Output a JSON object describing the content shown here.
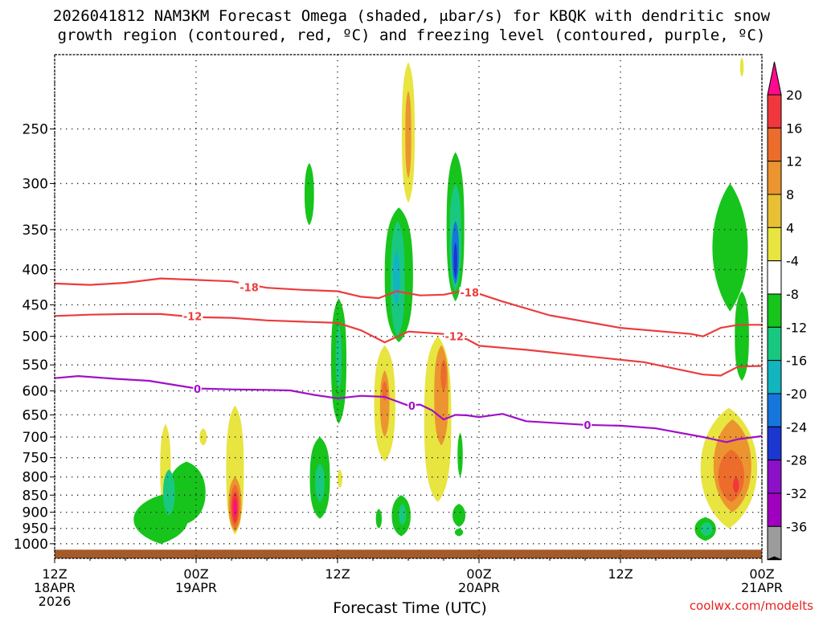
{
  "chart_data": {
    "type": "contour",
    "title_line1": "2026041812 NAM3KM Forecast Omega (shaded, μbar/s) for KBQK with dendritic snow",
    "title_line2": "growth region (contoured, red, ºC) and freezing level (contoured, purple, ºC)",
    "xlabel": "Forecast Time (UTC)",
    "ylabel": "",
    "credit": "coolwx.com/modelts",
    "x_range_hours": [
      0,
      60
    ],
    "y_axis": {
      "scale": "log",
      "range_hpa": [
        1050,
        195
      ],
      "reversed": true
    },
    "y_ticks": [
      250,
      300,
      350,
      400,
      450,
      500,
      550,
      600,
      650,
      700,
      750,
      800,
      850,
      900,
      950,
      1000
    ],
    "x_ticks": [
      {
        "hour": 0,
        "lines": [
          "12Z",
          "18APR",
          "2026"
        ]
      },
      {
        "hour": 12,
        "lines": [
          "00Z",
          "19APR"
        ]
      },
      {
        "hour": 24,
        "lines": [
          "12Z"
        ]
      },
      {
        "hour": 36,
        "lines": [
          "00Z",
          "20APR"
        ]
      },
      {
        "hour": 48,
        "lines": [
          "12Z"
        ]
      },
      {
        "hour": 60,
        "lines": [
          "00Z",
          "21APR"
        ]
      }
    ],
    "colorbar": {
      "labels": [
        "20",
        "16",
        "12",
        "8",
        "4",
        "-4",
        "-8",
        "-12",
        "-16",
        "-20",
        "-24",
        "-28",
        "-32",
        "-36"
      ],
      "colors": [
        "#ff0a8c",
        "#f0383c",
        "#ec6c2c",
        "#eb9430",
        "#e8c034",
        "#e8e440",
        "#ffffff",
        "#17c41c",
        "#19c880",
        "#12b4c0",
        "#1676dc",
        "#1c36d0",
        "#8c10c8",
        "#a000c0",
        "#9c9c9c",
        "#000000"
      ]
    },
    "contours": [
      {
        "name": "-18",
        "color": "#ec3c3c",
        "points": [
          [
            0,
            419
          ],
          [
            3,
            421
          ],
          [
            6,
            418
          ],
          [
            9,
            412
          ],
          [
            12,
            414
          ],
          [
            15,
            416
          ],
          [
            18,
            425
          ],
          [
            21,
            428
          ],
          [
            24,
            430
          ],
          [
            26,
            438
          ],
          [
            27.5,
            440
          ],
          [
            29,
            430
          ],
          [
            31,
            436
          ],
          [
            33,
            435
          ],
          [
            35,
            428
          ],
          [
            38,
            445
          ],
          [
            42,
            466
          ],
          [
            48,
            486
          ],
          [
            54,
            496
          ],
          [
            55,
            500
          ],
          [
            56.5,
            486
          ],
          [
            58,
            481
          ],
          [
            60,
            481
          ]
        ]
      },
      {
        "name": "-12",
        "color": "#ec3c3c",
        "points": [
          [
            0,
            467
          ],
          [
            3,
            465
          ],
          [
            6,
            464
          ],
          [
            9,
            464
          ],
          [
            12,
            469
          ],
          [
            15,
            470
          ],
          [
            18,
            474
          ],
          [
            21,
            476
          ],
          [
            24,
            478
          ],
          [
            26,
            490
          ],
          [
            28,
            510
          ],
          [
            30,
            492
          ],
          [
            33,
            496
          ],
          [
            35,
            505
          ],
          [
            36,
            516
          ],
          [
            40,
            523
          ],
          [
            45,
            534
          ],
          [
            50,
            545
          ],
          [
            55,
            568
          ],
          [
            56.5,
            570
          ],
          [
            58,
            553
          ],
          [
            60,
            552
          ]
        ]
      },
      {
        "name": "0",
        "color": "#a010c8",
        "points": [
          [
            0,
            575
          ],
          [
            2,
            571
          ],
          [
            5,
            576
          ],
          [
            8,
            580
          ],
          [
            12,
            595
          ],
          [
            15,
            597
          ],
          [
            18,
            598
          ],
          [
            20,
            599
          ],
          [
            22,
            608
          ],
          [
            24,
            615
          ],
          [
            26,
            610
          ],
          [
            28,
            612
          ],
          [
            30,
            630
          ],
          [
            31,
            628
          ],
          [
            32,
            640
          ],
          [
            33,
            660
          ],
          [
            34,
            650
          ],
          [
            35,
            651
          ],
          [
            36,
            655
          ],
          [
            38,
            648
          ],
          [
            40,
            664
          ],
          [
            45,
            672
          ],
          [
            48,
            674
          ],
          [
            51,
            680
          ],
          [
            55,
            700
          ],
          [
            57,
            712
          ],
          [
            58,
            705
          ],
          [
            60,
            698
          ]
        ]
      }
    ],
    "contour_labels": [
      {
        "text": "-18",
        "hour": 16.5,
        "hpa": 424,
        "color": "#ec3c3c"
      },
      {
        "text": "-18",
        "hour": 35.2,
        "hpa": 432,
        "color": "#ec3c3c"
      },
      {
        "text": "-12",
        "hour": 11.7,
        "hpa": 467,
        "color": "#ec3c3c"
      },
      {
        "text": "-12",
        "hour": 33.9,
        "hpa": 500,
        "color": "#ec3c3c"
      },
      {
        "text": "0",
        "hour": 12.1,
        "hpa": 596,
        "color": "#a010c8"
      },
      {
        "text": "0",
        "hour": 30.3,
        "hpa": 630,
        "color": "#a010c8"
      },
      {
        "text": "0",
        "hour": 45.2,
        "hpa": 672,
        "color": "#a010c8"
      }
    ],
    "shaded_regions": [
      {
        "value": 4,
        "color": "#e8e440",
        "hour": 30.0,
        "hpa_top": 200,
        "hpa_bottom": 320,
        "hw": 0.55,
        "pinch": 0.18
      },
      {
        "value": 8,
        "color": "#eb9430",
        "hour": 30.0,
        "hpa_top": 220,
        "hpa_bottom": 295,
        "hw": 0.25,
        "pinch": 0.15
      },
      {
        "value": -4,
        "color": "#17c41c",
        "hour": 21.6,
        "hpa_top": 280,
        "hpa_bottom": 345,
        "hw": 0.4,
        "pinch": 0.3
      },
      {
        "value": -4,
        "color": "#17c41c",
        "hour": 29.2,
        "hpa_top": 325,
        "hpa_bottom": 510,
        "hw": 1.2,
        "pinch": 0.2
      },
      {
        "value": -8,
        "color": "#19c880",
        "hour": 29.1,
        "hpa_top": 340,
        "hpa_bottom": 500,
        "hw": 0.6,
        "pinch": 0.2
      },
      {
        "value": -12,
        "color": "#12b4c0",
        "hour": 29.0,
        "hpa_top": 375,
        "hpa_bottom": 450,
        "hw": 0.3,
        "pinch": 0.3
      },
      {
        "value": -4,
        "color": "#17c41c",
        "hour": 34.0,
        "hpa_top": 270,
        "hpa_bottom": 445,
        "hw": 0.75,
        "pinch": 0.2
      },
      {
        "value": -8,
        "color": "#19c880",
        "hour": 34.0,
        "hpa_top": 300,
        "hpa_bottom": 430,
        "hw": 0.5,
        "pinch": 0.2
      },
      {
        "value": -16,
        "color": "#1676dc",
        "hour": 34.0,
        "hpa_top": 340,
        "hpa_bottom": 420,
        "hw": 0.3,
        "pinch": 0.25
      },
      {
        "value": -24,
        "color": "#1c36d0",
        "hour": 34.0,
        "hpa_top": 365,
        "hpa_bottom": 412,
        "hw": 0.15,
        "pinch": 0.3
      },
      {
        "value": -4,
        "color": "#17c41c",
        "hour": 24.1,
        "hpa_top": 440,
        "hpa_bottom": 670,
        "hw": 0.65,
        "pinch": 0.2
      },
      {
        "value": -8,
        "color": "#19c880",
        "hour": 24.1,
        "hpa_top": 480,
        "hpa_bottom": 600,
        "hw": 0.25,
        "pinch": 0.3
      },
      {
        "value": -4,
        "color": "#17c41c",
        "hour": 57.3,
        "hpa_top": 300,
        "hpa_bottom": 460,
        "hw": 1.5,
        "pinch": 0.6
      },
      {
        "value": -4,
        "color": "#17c41c",
        "hour": 58.3,
        "hpa_top": 430,
        "hpa_bottom": 580,
        "hw": 0.6,
        "pinch": 0.2
      },
      {
        "value": 4,
        "color": "#e8e440",
        "hour": 28.0,
        "hpa_top": 515,
        "hpa_bottom": 760,
        "hw": 0.9,
        "pinch": 0.25
      },
      {
        "value": 8,
        "color": "#eb9430",
        "hour": 28.0,
        "hpa_top": 560,
        "hpa_bottom": 700,
        "hw": 0.4,
        "pinch": 0.3
      },
      {
        "value": 12,
        "color": "#ec6c2c",
        "hour": 28.0,
        "hpa_top": 580,
        "hpa_bottom": 620,
        "hw": 0.2,
        "pinch": 0.3
      },
      {
        "value": 4,
        "color": "#e8e440",
        "hour": 32.5,
        "hpa_top": 500,
        "hpa_bottom": 870,
        "hw": 1.15,
        "pinch": 0.15
      },
      {
        "value": 8,
        "color": "#eb9430",
        "hour": 32.8,
        "hpa_top": 515,
        "hpa_bottom": 720,
        "hw": 0.6,
        "pinch": 0.2
      },
      {
        "value": 12,
        "color": "#ec6c2c",
        "hour": 33.0,
        "hpa_top": 540,
        "hpa_bottom": 600,
        "hw": 0.25,
        "pinch": 0.3
      },
      {
        "value": 4,
        "color": "#e8e440",
        "hour": 9.4,
        "hpa_top": 670,
        "hpa_bottom": 900,
        "hw": 0.45,
        "pinch": 0.25
      },
      {
        "value": 4,
        "color": "#e8e440",
        "hour": 15.3,
        "hpa_top": 630,
        "hpa_bottom": 970,
        "hw": 0.75,
        "pinch": 0.2
      },
      {
        "value": 8,
        "color": "#eb9430",
        "hour": 15.3,
        "hpa_top": 800,
        "hpa_bottom": 960,
        "hw": 0.55,
        "pinch": 0.3
      },
      {
        "value": 12,
        "color": "#ec6c2c",
        "hour": 15.3,
        "hpa_top": 820,
        "hpa_bottom": 950,
        "hw": 0.4,
        "pinch": 0.3
      },
      {
        "value": 16,
        "color": "#f0383c",
        "hour": 15.3,
        "hpa_top": 840,
        "hpa_bottom": 935,
        "hw": 0.27,
        "pinch": 0.3
      },
      {
        "value": 20,
        "color": "#ff0a8c",
        "hour": 15.3,
        "hpa_top": 860,
        "hpa_bottom": 915,
        "hw": 0.13,
        "pinch": 0.3
      },
      {
        "value": 4,
        "color": "#e8e440",
        "hour": 12.6,
        "hpa_top": 680,
        "hpa_bottom": 720,
        "hw": 0.3,
        "pinch": 0.3
      },
      {
        "value": -4,
        "color": "#17c41c",
        "hour": 11.2,
        "hpa_top": 760,
        "hpa_bottom": 935,
        "hw": 1.6,
        "pinch": 0.35
      },
      {
        "value": -4,
        "color": "#17c41c",
        "hour": 9.0,
        "hpa_top": 850,
        "hpa_bottom": 1000,
        "hw": 2.3,
        "pinch": 0.55
      },
      {
        "value": -8,
        "color": "#19c880",
        "hour": 9.7,
        "hpa_top": 780,
        "hpa_bottom": 910,
        "hw": 0.5,
        "pinch": 0.3
      },
      {
        "value": -4,
        "color": "#17c41c",
        "hour": 22.5,
        "hpa_top": 700,
        "hpa_bottom": 920,
        "hw": 0.85,
        "pinch": 0.2
      },
      {
        "value": -8,
        "color": "#19c880",
        "hour": 22.5,
        "hpa_top": 765,
        "hpa_bottom": 870,
        "hw": 0.4,
        "pinch": 0.3
      },
      {
        "value": 4,
        "color": "#e8e440",
        "hour": 24.2,
        "hpa_top": 780,
        "hpa_bottom": 830,
        "hw": 0.2,
        "pinch": 0.3
      },
      {
        "value": -4,
        "color": "#17c41c",
        "hour": 29.4,
        "hpa_top": 850,
        "hpa_bottom": 975,
        "hw": 0.8,
        "pinch": 0.35
      },
      {
        "value": -8,
        "color": "#19c880",
        "hour": 29.5,
        "hpa_top": 875,
        "hpa_bottom": 940,
        "hw": 0.3,
        "pinch": 0.3
      },
      {
        "value": -4,
        "color": "#17c41c",
        "hour": 27.5,
        "hpa_top": 890,
        "hpa_bottom": 950,
        "hw": 0.25,
        "pinch": 0.3
      },
      {
        "value": -4,
        "color": "#17c41c",
        "hour": 34.4,
        "hpa_top": 690,
        "hpa_bottom": 800,
        "hw": 0.22,
        "pinch": 0.3
      },
      {
        "value": -4,
        "color": "#17c41c",
        "hour": 34.3,
        "hpa_top": 875,
        "hpa_bottom": 945,
        "hw": 0.55,
        "pinch": 0.4
      },
      {
        "value": -4,
        "color": "#17c41c",
        "hour": 34.3,
        "hpa_top": 950,
        "hpa_bottom": 975,
        "hw": 0.35,
        "pinch": 0.4
      },
      {
        "value": 4,
        "color": "#e8e440",
        "hour": 57.2,
        "hpa_top": 635,
        "hpa_bottom": 950,
        "hw": 2.4,
        "pinch": 0.5
      },
      {
        "value": 8,
        "color": "#eb9430",
        "hour": 57.5,
        "hpa_top": 660,
        "hpa_bottom": 900,
        "hw": 1.6,
        "pinch": 0.45
      },
      {
        "value": 12,
        "color": "#ec6c2c",
        "hour": 57.4,
        "hpa_top": 730,
        "hpa_bottom": 870,
        "hw": 1.1,
        "pinch": 0.45
      },
      {
        "value": 16,
        "color": "#f0383c",
        "hour": 57.8,
        "hpa_top": 800,
        "hpa_bottom": 845,
        "hw": 0.25,
        "pinch": 0.4
      },
      {
        "value": -4,
        "color": "#17c41c",
        "hour": 55.2,
        "hpa_top": 915,
        "hpa_bottom": 990,
        "hw": 0.9,
        "pinch": 0.4
      },
      {
        "value": -8,
        "color": "#19c880",
        "hour": 55.3,
        "hpa_top": 930,
        "hpa_bottom": 975,
        "hw": 0.5,
        "pinch": 0.4
      },
      {
        "value": 4,
        "color": "#e8e440",
        "hour": 58.3,
        "hpa_top": 197,
        "hpa_bottom": 210,
        "hw": 0.15,
        "pinch": 0.3
      }
    ],
    "ground": {
      "color": "#a55a2a",
      "hpa_top": 1020
    }
  }
}
